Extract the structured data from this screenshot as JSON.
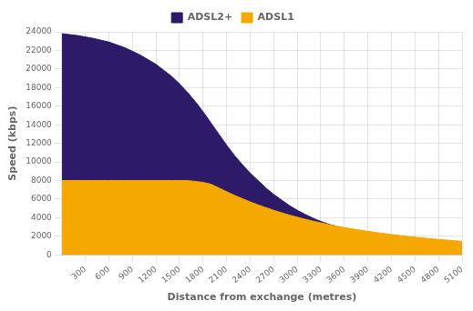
{
  "chart_data": {
    "type": "area",
    "xlabel": "Distance from exchange (metres)",
    "ylabel": "Speed (kbps)",
    "xlim": [
      0,
      5100
    ],
    "ylim": [
      0,
      24000
    ],
    "xticks": [
      300,
      600,
      900,
      1200,
      1500,
      1800,
      2100,
      2400,
      2700,
      3000,
      3300,
      3600,
      3900,
      4200,
      4500,
      4800,
      5100
    ],
    "yticks": [
      0,
      2000,
      4000,
      6000,
      8000,
      10000,
      12000,
      14000,
      16000,
      18000,
      20000,
      22000,
      24000
    ],
    "grid": true,
    "legend": "top",
    "series": [
      {
        "name": "ADSL2+",
        "color": "#2d1b69",
        "x": [
          0,
          200,
          400,
          600,
          800,
          1000,
          1200,
          1400,
          1500,
          1600,
          1700,
          1800,
          1900,
          2000,
          2100,
          2200,
          2300,
          2400,
          2500,
          2600,
          2700,
          2800,
          2900,
          3000,
          3100,
          3200,
          3300,
          3400,
          3500,
          3600,
          3700,
          3800,
          3900,
          4000,
          4100,
          4200,
          4300,
          4400,
          4500,
          4600,
          4700,
          4800,
          4900,
          5000,
          5100
        ],
        "values": [
          23800,
          23600,
          23300,
          22900,
          22300,
          21500,
          20500,
          19200,
          18400,
          17500,
          16500,
          15400,
          14200,
          13000,
          11800,
          10700,
          9700,
          8800,
          8000,
          7200,
          6500,
          5900,
          5300,
          4800,
          4350,
          3950,
          3600,
          3300,
          3050,
          2820,
          2620,
          2440,
          2280,
          2130,
          2000,
          1880,
          1770,
          1670,
          1580,
          1500,
          1420,
          1350,
          1285,
          1225,
          1170
        ]
      },
      {
        "name": "ADSL1",
        "color": "#f5a800",
        "x": [
          0,
          200,
          400,
          600,
          800,
          1000,
          1200,
          1400,
          1600,
          1800,
          1900,
          2000,
          2100,
          2200,
          2300,
          2400,
          2500,
          2600,
          2700,
          2800,
          2900,
          3000,
          3100,
          3200,
          3300,
          3400,
          3500,
          3600,
          3700,
          3800,
          3900,
          4000,
          4100,
          4200,
          4300,
          4400,
          4500,
          4600,
          4700,
          4800,
          4900,
          5000,
          5100
        ],
        "values": [
          8000,
          8000,
          8000,
          8000,
          8000,
          8000,
          8000,
          8000,
          8000,
          7800,
          7600,
          7200,
          6800,
          6400,
          6050,
          5700,
          5380,
          5080,
          4800,
          4530,
          4280,
          4050,
          3830,
          3630,
          3440,
          3260,
          3090,
          2940,
          2790,
          2660,
          2530,
          2410,
          2300,
          2190,
          2090,
          1990,
          1900,
          1815,
          1735,
          1660,
          1590,
          1525,
          1460
        ]
      }
    ]
  }
}
